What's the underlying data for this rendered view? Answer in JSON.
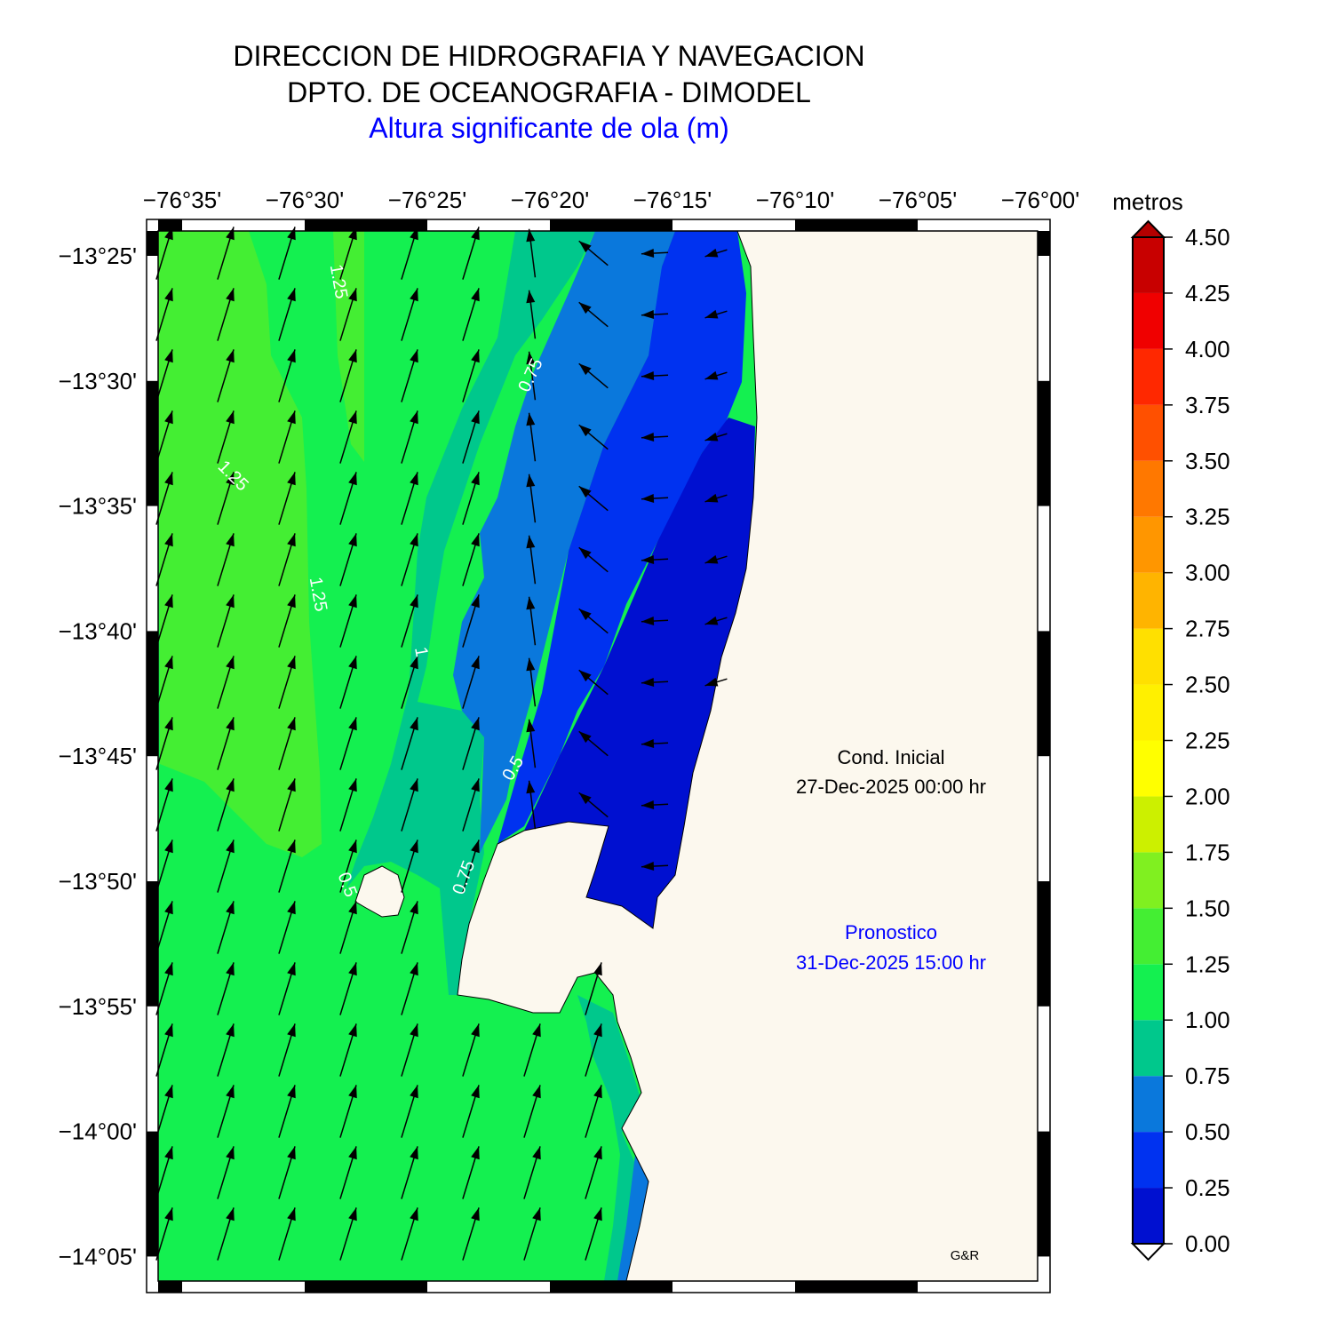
{
  "header": {
    "line1": "DIRECCION DE HIDROGRAFIA Y NAVEGACION",
    "line2": "DPTO. DE OCEANOGRAFIA - DIMODEL",
    "subtitle": "Altura significante de ola (m)"
  },
  "map": {
    "lon_labels": [
      "−76°35'",
      "−76°30'",
      "−76°25'",
      "−76°20'",
      "−76°15'",
      "−76°10'",
      "−76°05'",
      "−76°00'"
    ],
    "lat_labels": [
      "−13°25'",
      "−13°30'",
      "−13°35'",
      "−13°40'",
      "−13°45'",
      "−13°50'",
      "−13°55'",
      "−14°00'",
      "−14°05'"
    ],
    "contour_labels": [
      "1.25",
      "0.75",
      "1.25",
      "1.25",
      "1",
      "0.5",
      "0.75",
      "0.5"
    ]
  },
  "colorbar": {
    "title": "metros",
    "labels": [
      "0.00",
      "0.25",
      "0.50",
      "0.75",
      "1.00",
      "1.25",
      "1.50",
      "1.75",
      "2.00",
      "2.25",
      "2.50",
      "2.75",
      "3.00",
      "3.25",
      "3.50",
      "3.75",
      "4.00",
      "4.25",
      "4.50"
    ],
    "colors": [
      "#0010d0",
      "#0032f0",
      "#0a78dc",
      "#00c88c",
      "#14f050",
      "#44ee33",
      "#80f020",
      "#ccf000",
      "#ffff00",
      "#fff000",
      "#ffe000",
      "#ffb400",
      "#ff9600",
      "#ff7800",
      "#ff5000",
      "#ff2800",
      "#f00000",
      "#c80000"
    ]
  },
  "annotations": {
    "initial_label": "Cond. Inicial",
    "initial_time": "27-Dec-2025 00:00 hr",
    "forecast_label": "Pronostico",
    "forecast_time": "31-Dec-2025 15:00 hr",
    "credit": "G&R"
  }
}
